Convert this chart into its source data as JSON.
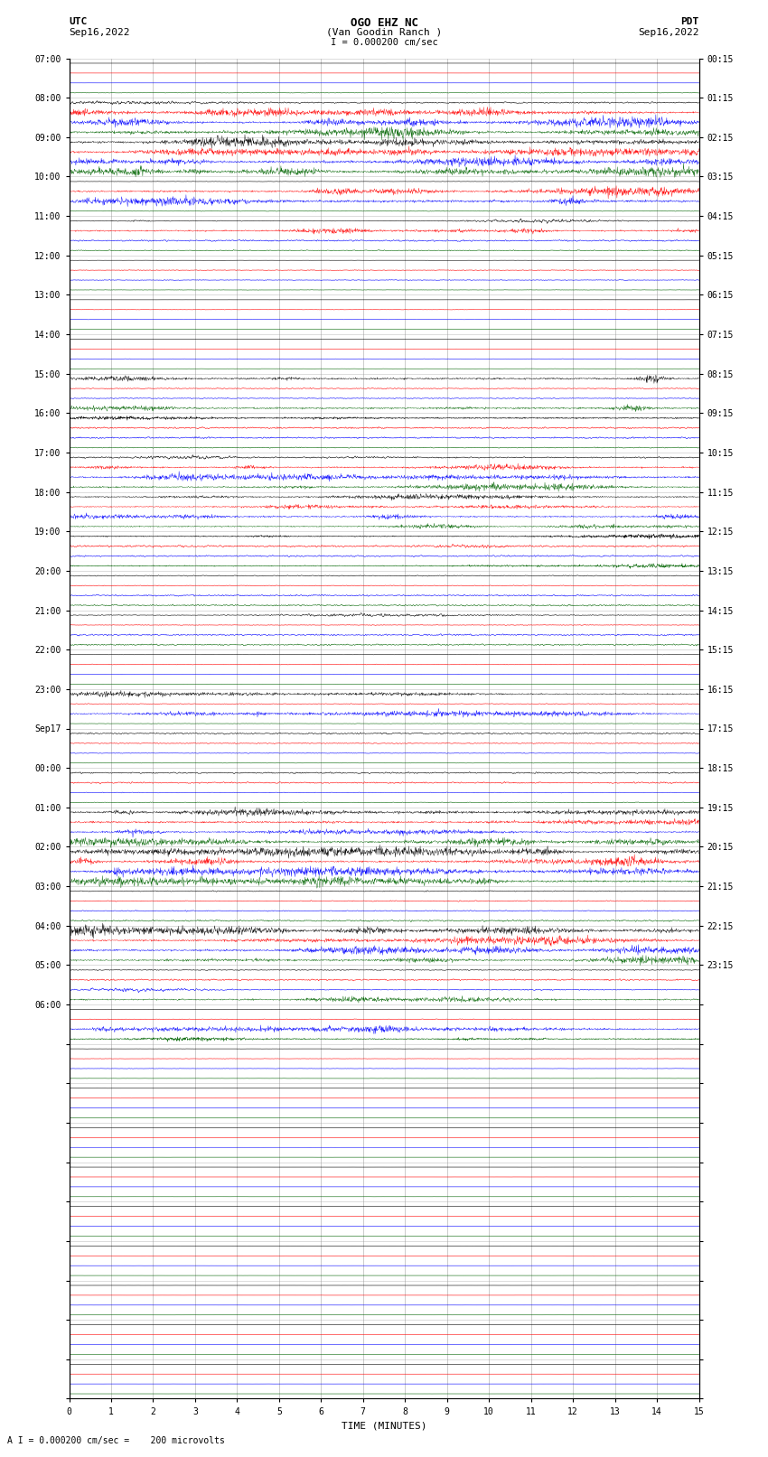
{
  "title_line1": "OGO EHZ NC",
  "title_line2": "(Van Goodin Ranch )",
  "scale_text": "I = 0.000200 cm/sec",
  "bottom_text": "A I = 0.000200 cm/sec =    200 microvolts",
  "utc_label": "UTC",
  "utc_date": "Sep16,2022",
  "pdt_label": "PDT",
  "pdt_date": "Sep16,2022",
  "xlabel": "TIME (MINUTES)",
  "bg_color": "#ffffff",
  "grid_color": "#888888",
  "num_rows": 34,
  "minutes_per_row": 15,
  "colors_order": [
    "black",
    "red",
    "blue",
    "darkgreen"
  ],
  "utc_labels": [
    "07:00",
    "08:00",
    "09:00",
    "10:00",
    "11:00",
    "12:00",
    "13:00",
    "14:00",
    "15:00",
    "16:00",
    "17:00",
    "18:00",
    "19:00",
    "20:00",
    "21:00",
    "22:00",
    "23:00",
    "Sep17",
    "00:00",
    "01:00",
    "02:00",
    "03:00",
    "04:00",
    "05:00",
    "06:00"
  ],
  "pdt_labels": [
    "00:15",
    "01:15",
    "02:15",
    "03:15",
    "04:15",
    "05:15",
    "06:15",
    "07:15",
    "08:15",
    "09:15",
    "10:15",
    "11:15",
    "12:15",
    "13:15",
    "14:15",
    "15:15",
    "16:15",
    "17:15",
    "18:15",
    "19:15",
    "20:15",
    "21:15",
    "22:15",
    "23:15"
  ],
  "row_params": [
    {
      "label": "07:00",
      "pdt": "00:15",
      "acts": [
        0.02,
        0.02,
        0.02,
        0.15
      ]
    },
    {
      "label": "08:00",
      "pdt": "01:15",
      "acts": [
        0.8,
        2.5,
        3.0,
        3.0
      ]
    },
    {
      "label": "09:00",
      "pdt": "02:15",
      "acts": [
        3.0,
        2.5,
        2.5,
        3.0
      ]
    },
    {
      "label": "10:00",
      "pdt": "03:15",
      "acts": [
        0.1,
        2.5,
        2.5,
        0.2
      ]
    },
    {
      "label": "11:00",
      "pdt": "04:15",
      "acts": [
        0.8,
        1.5,
        0.5,
        0.3
      ]
    },
    {
      "label": "12:00",
      "pdt": "05:15",
      "acts": [
        0.05,
        0.2,
        0.2,
        0.1
      ]
    },
    {
      "label": "13:00",
      "pdt": "06:15",
      "acts": [
        0.02,
        0.1,
        0.1,
        0.05
      ]
    },
    {
      "label": "14:00",
      "pdt": "07:15",
      "acts": [
        0.02,
        0.1,
        0.1,
        0.05
      ]
    },
    {
      "label": "15:00",
      "pdt": "08:15",
      "acts": [
        1.5,
        0.3,
        0.3,
        1.5
      ]
    },
    {
      "label": "16:00",
      "pdt": "09:15",
      "acts": [
        1.0,
        0.5,
        0.5,
        0.3
      ]
    },
    {
      "label": "17:00",
      "pdt": "10:15",
      "acts": [
        0.8,
        1.5,
        2.0,
        2.0
      ]
    },
    {
      "label": "18:00",
      "pdt": "11:15",
      "acts": [
        1.5,
        1.2,
        1.5,
        1.2
      ]
    },
    {
      "label": "19:00",
      "pdt": "12:15",
      "acts": [
        1.0,
        0.8,
        0.5,
        1.0
      ]
    },
    {
      "label": "20:00",
      "pdt": "13:15",
      "acts": [
        0.3,
        0.2,
        0.5,
        0.5
      ]
    },
    {
      "label": "21:00",
      "pdt": "14:15",
      "acts": [
        0.8,
        0.2,
        0.5,
        0.5
      ]
    },
    {
      "label": "22:00",
      "pdt": "15:15",
      "acts": [
        0.1,
        0.2,
        0.1,
        0.1
      ]
    },
    {
      "label": "23:00",
      "pdt": "16:15",
      "acts": [
        1.5,
        0.2,
        1.8,
        0.1
      ]
    },
    {
      "label": "Sep17",
      "pdt": "17:15",
      "acts": [
        0.5,
        0.3,
        0.2,
        0.1
      ]
    },
    {
      "label": "00:00",
      "pdt": "18:15",
      "acts": [
        0.5,
        0.5,
        0.2,
        0.2
      ]
    },
    {
      "label": "01:00",
      "pdt": "19:15",
      "acts": [
        2.0,
        1.5,
        1.5,
        2.5
      ]
    },
    {
      "label": "02:00",
      "pdt": "20:15",
      "acts": [
        3.0,
        2.5,
        3.0,
        3.0
      ]
    },
    {
      "label": "03:00",
      "pdt": "21:15",
      "acts": [
        0.3,
        0.3,
        0.3,
        0.5
      ]
    },
    {
      "label": "04:00",
      "pdt": "22:15",
      "acts": [
        3.0,
        2.5,
        2.5,
        2.0
      ]
    },
    {
      "label": "05:00",
      "pdt": "23:15",
      "acts": [
        0.3,
        0.5,
        0.8,
        1.5
      ]
    },
    {
      "label": "06:00",
      "pdt": "",
      "acts": [
        0.1,
        0.2,
        2.0,
        1.0
      ]
    },
    {
      "label": "",
      "pdt": "",
      "acts": [
        0.05,
        0.1,
        0.1,
        0.05
      ]
    },
    {
      "label": "",
      "pdt": "",
      "acts": [
        0.02,
        0.05,
        0.05,
        0.02
      ]
    },
    {
      "label": "",
      "pdt": "",
      "acts": [
        0.02,
        0.02,
        0.02,
        0.02
      ]
    },
    {
      "label": "",
      "pdt": "",
      "acts": [
        0.02,
        0.02,
        0.02,
        0.02
      ]
    },
    {
      "label": "",
      "pdt": "",
      "acts": [
        0.02,
        0.02,
        0.02,
        0.02
      ]
    },
    {
      "label": "",
      "pdt": "",
      "acts": [
        0.02,
        0.02,
        0.02,
        0.02
      ]
    },
    {
      "label": "",
      "pdt": "",
      "acts": [
        0.02,
        0.02,
        0.02,
        0.02
      ]
    },
    {
      "label": "",
      "pdt": "",
      "acts": [
        0.02,
        0.02,
        0.02,
        0.02
      ]
    },
    {
      "label": "",
      "pdt": "",
      "acts": [
        0.02,
        0.02,
        0.02,
        0.02
      ]
    }
  ]
}
